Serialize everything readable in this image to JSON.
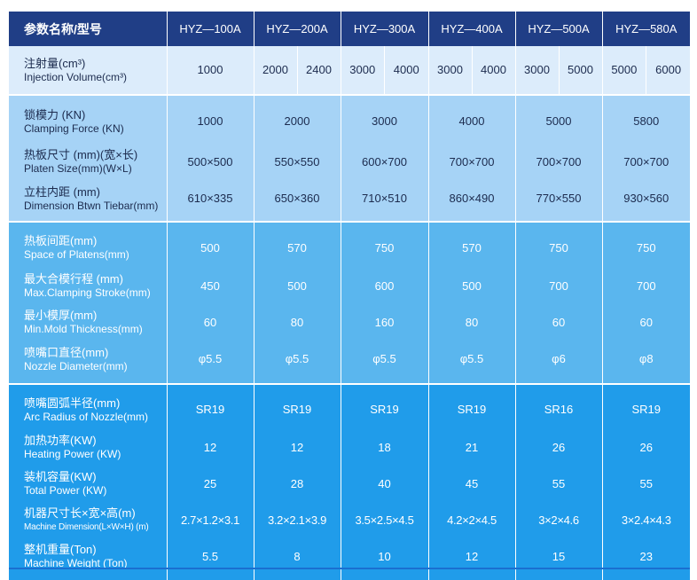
{
  "header": {
    "label": "参数名称/型号",
    "models": [
      "HYZ—100A",
      "HYZ—200A",
      "HYZ—300A",
      "HYZ—400A",
      "HYZ—500A",
      "HYZ—580A"
    ]
  },
  "injection": {
    "label_zh": "注射量(cm³)",
    "label_en": "Injection Volume(cm³)",
    "values": [
      "1000",
      [
        "2000",
        "2400"
      ],
      [
        "3000",
        "4000"
      ],
      [
        "3000",
        "4000"
      ],
      [
        "3000",
        "5000"
      ],
      [
        "5000",
        "6000"
      ]
    ]
  },
  "rows": [
    {
      "zh": "锁模力 (KN)",
      "en": "Clamping Force (KN)",
      "values": [
        "1000",
        "2000",
        "3000",
        "4000",
        "5000",
        "5800"
      ]
    },
    {
      "zh": "热板尺寸 (mm)(宽×长)",
      "en": "Platen Size(mm)(W×L)",
      "values": [
        "500×500",
        "550×550",
        "600×700",
        "700×700",
        "700×700",
        "700×700"
      ]
    },
    {
      "zh": "立柱内距 (mm)",
      "en": "Dimension Btwn Tiebar(mm)",
      "values": [
        "610×335",
        "650×360",
        "710×510",
        "860×490",
        "770×550",
        "930×560"
      ]
    },
    {
      "zh": "热板间距(mm)",
      "en": "Space of Platens(mm)",
      "values": [
        "500",
        "570",
        "750",
        "570",
        "750",
        "750"
      ]
    },
    {
      "zh": "最大合模行程 (mm)",
      "en": "Max.Clamping Stroke(mm)",
      "values": [
        "450",
        "500",
        "600",
        "500",
        "700",
        "700"
      ]
    },
    {
      "zh": "最小模厚(mm)",
      "en": "Min.Mold Thickness(mm)",
      "values": [
        "60",
        "80",
        "160",
        "80",
        "60",
        "60"
      ]
    },
    {
      "zh": "喷嘴口直径(mm)",
      "en": "Nozzle Diameter(mm)",
      "values": [
        "φ5.5",
        "φ5.5",
        "φ5.5",
        "φ5.5",
        "φ6",
        "φ8"
      ]
    },
    {
      "zh": "喷嘴圆弧半径(mm)",
      "en": "Arc Radius of Nozzle(mm)",
      "values": [
        "SR19",
        "SR19",
        "SR19",
        "SR19",
        "SR16",
        "SR19"
      ]
    },
    {
      "zh": "加热功率(KW)",
      "en": "Heating Power (KW)",
      "values": [
        "12",
        "12",
        "18",
        "21",
        "26",
        "26"
      ]
    },
    {
      "zh": "装机容量(KW)",
      "en": "Total Power (KW)",
      "values": [
        "25",
        "28",
        "40",
        "45",
        "55",
        "55"
      ]
    },
    {
      "zh": "机器尺寸长×宽×高(m)",
      "en": "Machine Dimension(L×W×H) (m)",
      "values": [
        "2.7×1.2×3.1",
        "3.2×2.1×3.9",
        "3.5×2.5×4.5",
        "4.2×2×4.5",
        "3×2×4.6",
        "3×2.4×4.3"
      ]
    },
    {
      "zh": "整机重量(Ton)",
      "en": "Machine Weight (Ton)",
      "values": [
        "5.5",
        "8",
        "10",
        "12",
        "15",
        "23"
      ]
    }
  ]
}
